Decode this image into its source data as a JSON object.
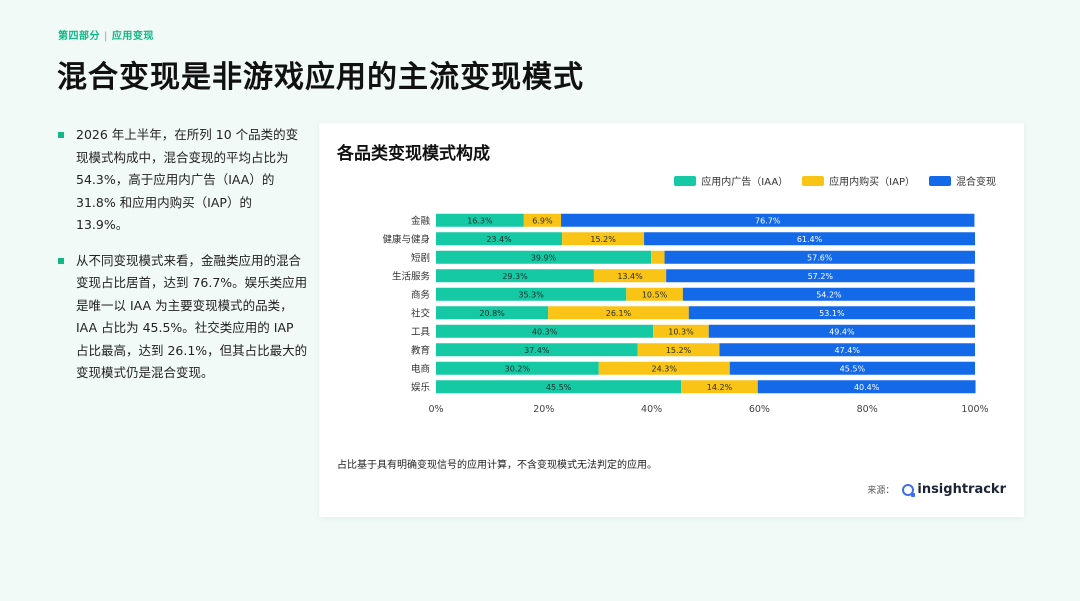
{
  "header": {
    "section": "第四部分",
    "separator": "|",
    "subsection": "应用变现",
    "title": "混合变现是非游戏应用的主流变现模式"
  },
  "bullets": [
    "2026 年上半年，在所列 10 个品类的变现模式构成中，混合变现的平均占比为 54.3%，高于应用内广告（IAA）的 31.8% 和应用内购买（IAP）的 13.9%。",
    "从不同变现模式来看，金融类应用的混合变现占比居首，达到 76.7%。娱乐类应用是唯一以 IAA 为主要变现模式的品类，IAA 占比为 45.5%。社交类应用的 IAP 占比最高，达到 26.1%，但其占比最大的变现模式仍是混合变现。"
  ],
  "card": {
    "footnote": "占比基于具有明确变现信号的应用计算，不含变现模式无法判定的应用。",
    "source_label": "来源：",
    "brand": "insightrackr"
  },
  "chart_data": {
    "type": "bar",
    "orientation": "horizontal",
    "stacked": true,
    "title": "各品类变现模式构成",
    "categories": [
      "金融",
      "健康与健身",
      "短剧",
      "生活服务",
      "商务",
      "社交",
      "工具",
      "教育",
      "电商",
      "娱乐"
    ],
    "series": [
      {
        "name": "应用内广告（IAA）",
        "color": "#14c9a4",
        "values": [
          16.3,
          23.4,
          39.9,
          29.3,
          35.3,
          20.8,
          40.3,
          37.4,
          30.2,
          45.5
        ],
        "labels": [
          "16.3%",
          "23.4%",
          "39.9%",
          "29.3%",
          "35.3%",
          "20.8%",
          "40.3%",
          "37.4%",
          "30.2%",
          "45.5%"
        ]
      },
      {
        "name": "应用内购买（IAP）",
        "color": "#f9c416",
        "values": [
          6.9,
          15.2,
          2.5,
          13.4,
          10.5,
          26.1,
          10.3,
          15.2,
          24.3,
          14.2
        ],
        "labels": [
          "6.9%",
          "15.2%",
          "",
          "13.4%",
          "10.5%",
          "26.1%",
          "10.3%",
          "15.2%",
          "24.3%",
          "14.2%"
        ]
      },
      {
        "name": "混合变现",
        "color": "#1469e8",
        "values": [
          76.7,
          61.4,
          57.6,
          57.2,
          54.2,
          53.1,
          49.4,
          47.4,
          45.5,
          40.4
        ],
        "labels": [
          "76.7%",
          "61.4%",
          "57.6%",
          "57.2%",
          "54.2%",
          "53.1%",
          "49.4%",
          "47.4%",
          "45.5%",
          "40.4%"
        ]
      }
    ],
    "xlim": [
      0,
      100
    ],
    "xticks": [
      "0%",
      "20%",
      "40%",
      "60%",
      "80%",
      "100%"
    ],
    "legend_position": "top-right",
    "grid": false
  }
}
